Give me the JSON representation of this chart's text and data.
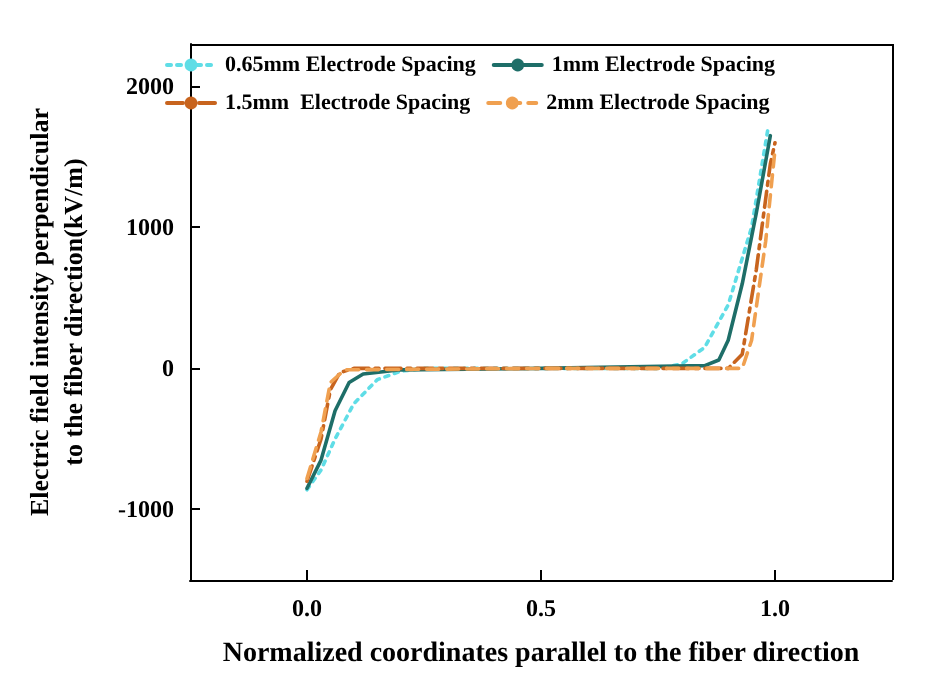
{
  "chart_data": {
    "type": "line",
    "xlabel": "Normalized coordinates parallel to the fiber direction",
    "ylabel": "Electric field intensity perpendicular\nto the fiber direction(kV/m)",
    "xlim": [
      -0.25,
      1.25
    ],
    "xticks": [
      {
        "value": 0,
        "label": "0.0"
      },
      0.5,
      {
        "value": 1,
        "label": "1.0"
      }
    ],
    "ylim": [
      -1500,
      2300
    ],
    "yticks": [
      -1000,
      0,
      1000,
      2000
    ],
    "grid": false,
    "legend": "top",
    "marker": "none",
    "series": [
      {
        "name": "0.65mm Electrode Spacing",
        "color": "#5fdde6",
        "line_style": "dotted",
        "x": [
          0,
          0.03,
          0.06,
          0.1,
          0.15,
          0.2,
          0.25,
          0.5,
          0.75,
          0.8,
          0.85,
          0.9,
          0.95,
          0.985
        ],
        "values": [
          -860,
          -720,
          -500,
          -250,
          -80,
          -20,
          0,
          0,
          0,
          30,
          150,
          450,
          1000,
          1700
        ]
      },
      {
        "name": "1mm Electrode Spacing",
        "color": "#1e6e68",
        "line_style": "solid",
        "x": [
          0,
          0.03,
          0.06,
          0.09,
          0.12,
          0.2,
          0.5,
          0.85,
          0.88,
          0.9,
          0.93,
          0.96,
          0.99
        ],
        "values": [
          -850,
          -650,
          -300,
          -100,
          -40,
          -10,
          0,
          20,
          60,
          200,
          600,
          1100,
          1650
        ]
      },
      {
        "name": "1.5mm  Electrode Spacing",
        "color": "#c8641e",
        "line_style": "dashdot",
        "x": [
          0,
          0.03,
          0.05,
          0.07,
          0.1,
          0.5,
          0.9,
          0.93,
          0.96,
          0.99,
          1.0
        ],
        "values": [
          -800,
          -500,
          -150,
          -30,
          0,
          0,
          0,
          100,
          700,
          1450,
          1600
        ]
      },
      {
        "name": "2mm Electrode Spacing",
        "color": "#f0a050",
        "line_style": "dashed",
        "x": [
          0,
          0.03,
          0.05,
          0.08,
          0.5,
          0.93,
          0.95,
          0.98,
          1.0
        ],
        "values": [
          -780,
          -450,
          -100,
          -10,
          0,
          0,
          200,
          900,
          1550
        ]
      }
    ]
  }
}
